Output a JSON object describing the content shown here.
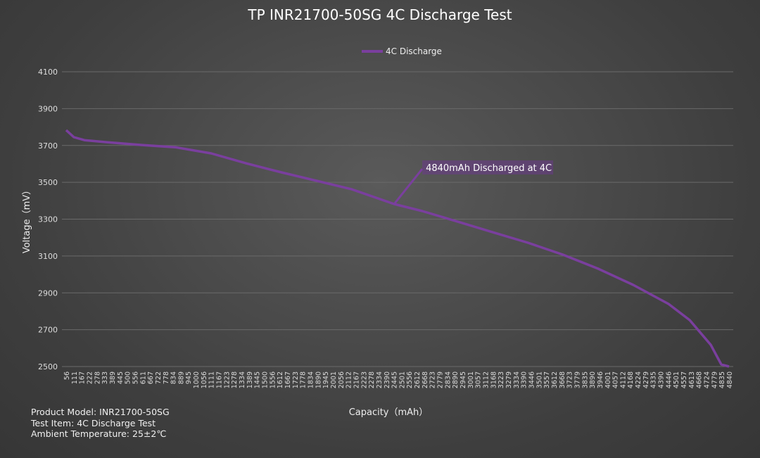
{
  "chart_data": {
    "type": "line",
    "title": "TP INR21700-50SG 4C Discharge Test",
    "xlabel": "Capacity（mAh）",
    "ylabel": "Voltage（mV）",
    "legend": {
      "position": "top",
      "entries": [
        "4C Discharge"
      ]
    },
    "grid": true,
    "ylim": [
      2500,
      4100
    ],
    "yticks": [
      4100,
      3900,
      3700,
      3500,
      3300,
      3100,
      2900,
      2700,
      2500
    ],
    "xticks": [
      "56",
      "111",
      "167",
      "222",
      "278",
      "333",
      "389",
      "445",
      "500",
      "556",
      "611",
      "667",
      "722",
      "778",
      "834",
      "889",
      "945",
      "1000",
      "1056",
      "1111",
      "1167",
      "1223",
      "1278",
      "1334",
      "1389",
      "1445",
      "1500",
      "1556",
      "1612",
      "1667",
      "1723",
      "1778",
      "1834",
      "1890",
      "1945",
      "2001",
      "2056",
      "2112",
      "2167",
      "2223",
      "2278",
      "2334",
      "2390",
      "2445",
      "2501",
      "2556",
      "2612",
      "2668",
      "2723",
      "2779",
      "2834",
      "2890",
      "2945",
      "3001",
      "3057",
      "3112",
      "3168",
      "3223",
      "3279",
      "3334",
      "3390",
      "3446",
      "3501",
      "3557",
      "3612",
      "3668",
      "3723",
      "3779",
      "3835",
      "3890",
      "3946",
      "4001",
      "4057",
      "4112",
      "4168",
      "4224",
      "4279",
      "4335",
      "4390",
      "4446",
      "4501",
      "4557",
      "4613",
      "4668",
      "4724",
      "4779",
      "4835",
      "4840"
    ],
    "series": [
      {
        "name": "4C Discharge",
        "color": "#7a3f9e",
        "x": [
          56,
          112,
          188,
          340,
          594,
          848,
          1102,
          1356,
          1610,
          1864,
          2118,
          2423,
          2626,
          2880,
          3134,
          3388,
          3641,
          3895,
          4149,
          4403,
          4556,
          4708,
          4784,
          4840
        ],
        "y": [
          3783,
          3745,
          3729,
          3718,
          3703,
          3690,
          3657,
          3603,
          3554,
          3508,
          3462,
          3382,
          3344,
          3287,
          3229,
          3172,
          3107,
          3031,
          2943,
          2840,
          2752,
          2618,
          2511,
          2500
        ]
      }
    ],
    "annotation": {
      "text": "4840mAh Discharged at 4C",
      "x": 2423,
      "y": 3382
    }
  },
  "info": {
    "model": "Product Model: INR21700-50SG",
    "item": "Test Item: 4C Discharge Test",
    "temp": "Ambient Temperature: 25±2℃"
  }
}
